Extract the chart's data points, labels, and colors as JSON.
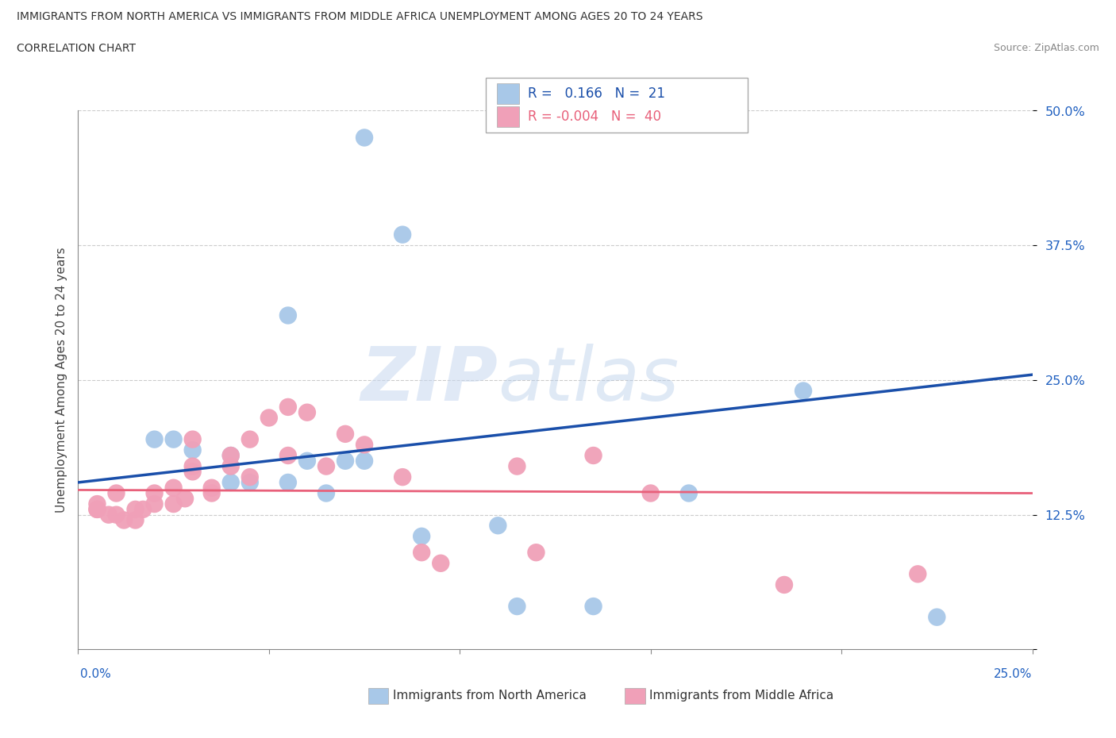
{
  "title_line1": "IMMIGRANTS FROM NORTH AMERICA VS IMMIGRANTS FROM MIDDLE AFRICA UNEMPLOYMENT AMONG AGES 20 TO 24 YEARS",
  "title_line2": "CORRELATION CHART",
  "source": "Source: ZipAtlas.com",
  "ylabel": "Unemployment Among Ages 20 to 24 years",
  "watermark_zip": "ZIP",
  "watermark_atlas": "atlas",
  "xlim": [
    0.0,
    0.25
  ],
  "ylim": [
    0.0,
    0.5
  ],
  "yticks": [
    0.0,
    0.125,
    0.25,
    0.375,
    0.5
  ],
  "ytick_labels": [
    "",
    "12.5%",
    "25.0%",
    "37.5%",
    "50.0%"
  ],
  "xtick_labels": [
    "0.0%",
    "",
    "",
    "",
    "",
    "25.0%"
  ],
  "xtick_vals": [
    0.0,
    0.05,
    0.1,
    0.15,
    0.2,
    0.25
  ],
  "blue_R": 0.166,
  "blue_N": 21,
  "pink_R": -0.004,
  "pink_N": 40,
  "blue_color": "#a8c8e8",
  "pink_color": "#f0a0b8",
  "blue_line_color": "#1a4faa",
  "pink_line_color": "#e8607a",
  "legend_blue_label": "Immigrants from North America",
  "legend_pink_label": "Immigrants from Middle Africa",
  "blue_scatter_x": [
    0.075,
    0.085,
    0.055,
    0.02,
    0.025,
    0.03,
    0.04,
    0.04,
    0.045,
    0.055,
    0.06,
    0.065,
    0.07,
    0.075,
    0.09,
    0.11,
    0.115,
    0.135,
    0.16,
    0.19,
    0.225
  ],
  "blue_scatter_y": [
    0.475,
    0.385,
    0.31,
    0.195,
    0.195,
    0.185,
    0.18,
    0.155,
    0.155,
    0.155,
    0.175,
    0.145,
    0.175,
    0.175,
    0.105,
    0.115,
    0.04,
    0.04,
    0.145,
    0.24,
    0.03
  ],
  "pink_scatter_x": [
    0.005,
    0.005,
    0.005,
    0.008,
    0.01,
    0.01,
    0.012,
    0.015,
    0.015,
    0.017,
    0.02,
    0.02,
    0.025,
    0.025,
    0.028,
    0.03,
    0.03,
    0.03,
    0.035,
    0.035,
    0.04,
    0.04,
    0.045,
    0.045,
    0.05,
    0.055,
    0.055,
    0.06,
    0.065,
    0.07,
    0.075,
    0.085,
    0.09,
    0.095,
    0.115,
    0.12,
    0.135,
    0.15,
    0.185,
    0.22
  ],
  "pink_scatter_y": [
    0.13,
    0.13,
    0.135,
    0.125,
    0.125,
    0.145,
    0.12,
    0.12,
    0.13,
    0.13,
    0.135,
    0.145,
    0.135,
    0.15,
    0.14,
    0.165,
    0.17,
    0.195,
    0.145,
    0.15,
    0.17,
    0.18,
    0.16,
    0.195,
    0.215,
    0.18,
    0.225,
    0.22,
    0.17,
    0.2,
    0.19,
    0.16,
    0.09,
    0.08,
    0.17,
    0.09,
    0.18,
    0.145,
    0.06,
    0.07
  ],
  "blue_trend_x": [
    0.0,
    0.25
  ],
  "blue_trend_y": [
    0.155,
    0.255
  ],
  "pink_trend_x": [
    0.0,
    0.25
  ],
  "pink_trend_y": [
    0.148,
    0.145
  ]
}
